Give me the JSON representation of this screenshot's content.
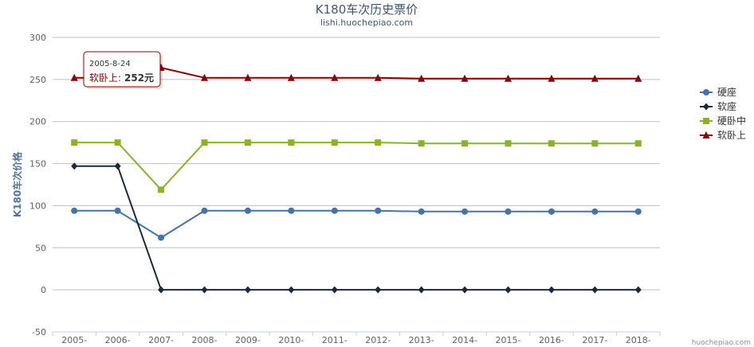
{
  "chart_data": {
    "type": "line",
    "title": "K180车次历史票价",
    "subtitle": "lishi.huochepiao.com",
    "ylabel": "K180车次价格",
    "categories": [
      "2005-",
      "2006-",
      "2007-",
      "2008-",
      "2009-",
      "2010-",
      "2011-",
      "2012-",
      "2013-",
      "2014-",
      "2015-",
      "2016-",
      "2017-",
      "2018-"
    ],
    "ylim": [
      -50,
      300
    ],
    "yticks": [
      -50,
      0,
      50,
      100,
      150,
      200,
      250,
      300
    ],
    "grid": true,
    "legend_position": "right",
    "series": [
      {
        "name": "硬座",
        "color": "#4572a7",
        "marker": "circle",
        "values": [
          94,
          94,
          62,
          94,
          94,
          94,
          94,
          94,
          93,
          93,
          93,
          93,
          93,
          93
        ]
      },
      {
        "name": "软座",
        "color": "#1a2a3a",
        "marker": "diamond",
        "values": [
          147,
          147,
          0,
          0,
          0,
          0,
          0,
          0,
          0,
          0,
          0,
          0,
          0,
          0
        ]
      },
      {
        "name": "硬卧中",
        "color": "#89b423",
        "marker": "square",
        "values": [
          175,
          175,
          119,
          175,
          175,
          175,
          175,
          175,
          174,
          174,
          174,
          174,
          174,
          174
        ]
      },
      {
        "name": "软卧上",
        "color": "#8b0000",
        "marker": "triangle",
        "values": [
          252,
          252,
          264,
          252,
          252,
          252,
          252,
          252,
          251,
          251,
          251,
          251,
          251,
          251
        ]
      }
    ],
    "tooltip": {
      "date": "2005-8-24",
      "series": "软卧上",
      "value": "252元"
    }
  },
  "credit": "huochepiao.com"
}
